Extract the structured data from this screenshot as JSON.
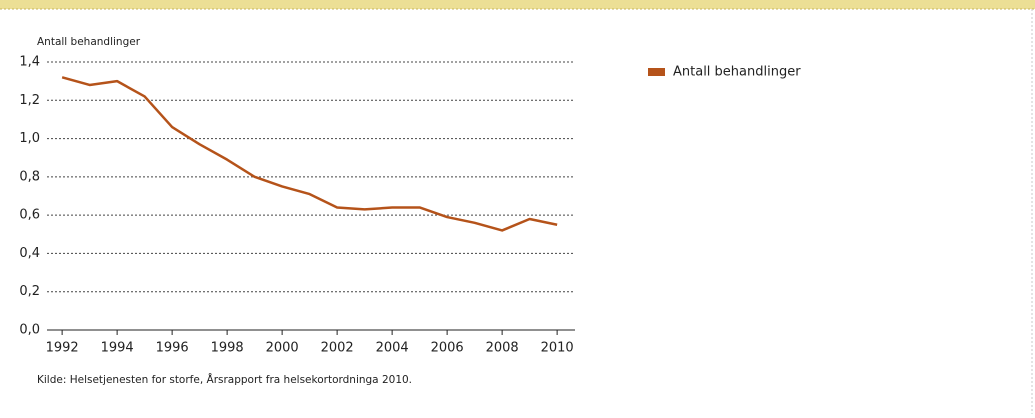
{
  "chart_data": {
    "type": "line",
    "y_axis_label": "Antall behandlinger",
    "source": "Kilde: Helsetjenesten for storfe, Årsrapport fra helsekortordninga 2010.",
    "x": [
      1992,
      1993,
      1994,
      1995,
      1996,
      1997,
      1998,
      1999,
      2000,
      2001,
      2002,
      2003,
      2004,
      2005,
      2006,
      2007,
      2008,
      2009,
      2010
    ],
    "series": [
      {
        "name": "Antall behandlinger",
        "color": "#b5531a",
        "values": [
          1.32,
          1.28,
          1.3,
          1.22,
          1.06,
          0.97,
          0.89,
          0.8,
          0.75,
          0.71,
          0.64,
          0.63,
          0.64,
          0.64,
          0.59,
          0.56,
          0.52,
          0.58,
          0.55
        ]
      }
    ],
    "xlim": [
      1991.45,
      2010.65
    ],
    "xticks": [
      1992,
      1994,
      1996,
      1998,
      2000,
      2002,
      2004,
      2006,
      2008,
      2010
    ],
    "ylim": [
      0,
      1.4
    ],
    "yticks": [
      {
        "value": 0,
        "label": "0,0"
      },
      {
        "value": 0.2,
        "label": "0,2"
      },
      {
        "value": 0.4,
        "label": "0,4"
      },
      {
        "value": 0.6,
        "label": "0,6"
      },
      {
        "value": 0.8,
        "label": "0,8"
      },
      {
        "value": 1.0,
        "label": "1,0"
      },
      {
        "value": 1.2,
        "label": "1,2"
      },
      {
        "value": 1.4,
        "label": "1,4"
      }
    ],
    "grid": true,
    "legend": "right"
  }
}
